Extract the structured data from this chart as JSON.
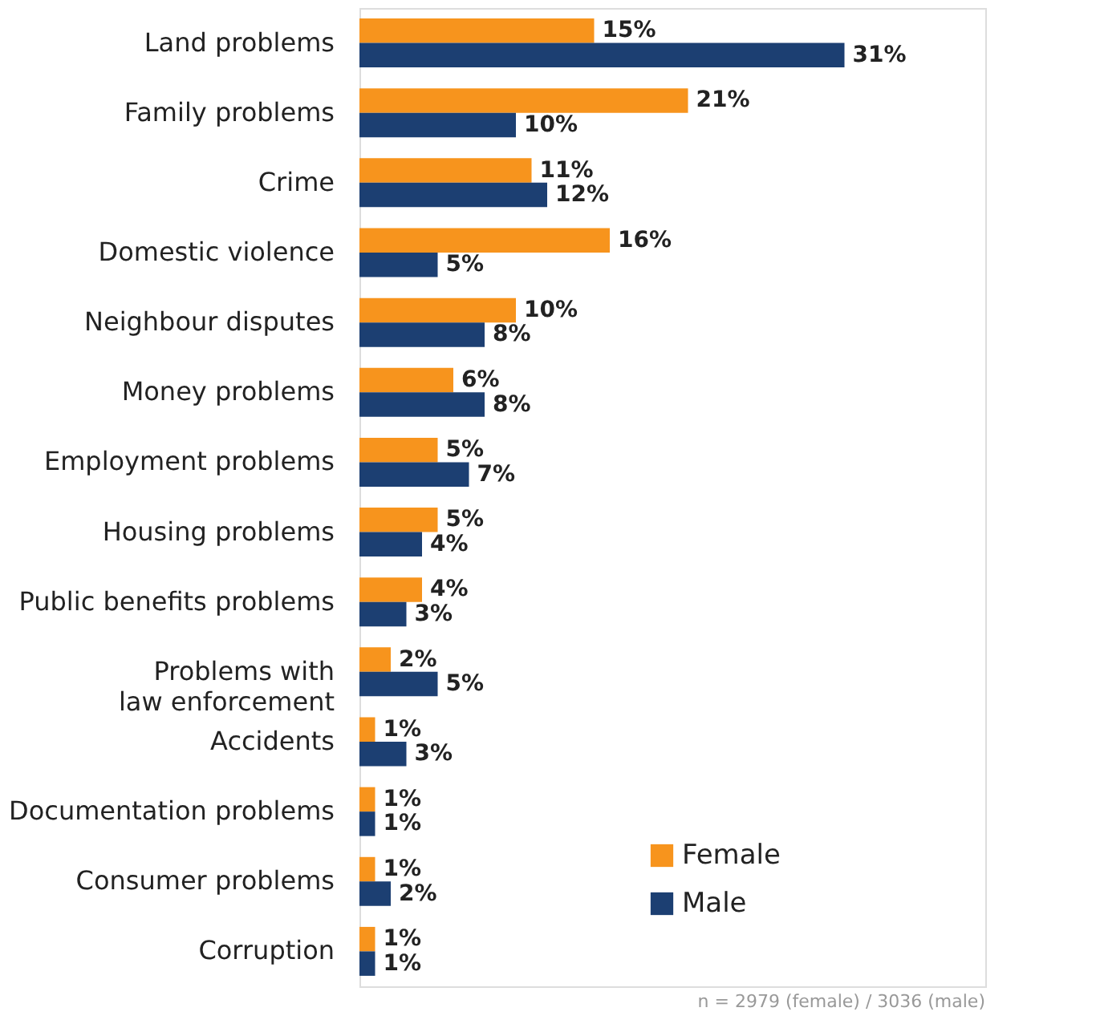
{
  "chart_data": {
    "type": "bar",
    "orientation": "horizontal",
    "categories": [
      "Land problems",
      "Family problems",
      "Crime",
      "Domestic violence",
      "Neighbour disputes",
      "Money problems",
      "Employment problems",
      "Housing problems",
      "Public benefits problems",
      "Problems with\nlaw enforcement",
      "Accidents",
      "Documentation problems",
      "Consumer problems",
      "Corruption"
    ],
    "series": [
      {
        "name": "Female",
        "color": "#f7941d",
        "values": [
          15,
          21,
          11,
          16,
          10,
          6,
          5,
          5,
          4,
          2,
          1,
          1,
          1,
          1
        ],
        "value_labels": [
          "15%",
          "21%",
          "11%",
          "16%",
          "10%",
          "6%",
          "5%",
          "5%",
          "4%",
          "2%",
          "1%",
          "1%",
          "1%",
          "1%"
        ]
      },
      {
        "name": "Male",
        "color": "#1c3f72",
        "values": [
          31,
          10,
          12,
          5,
          8,
          8,
          7,
          4,
          3,
          5,
          3,
          1,
          2,
          1
        ],
        "value_labels": [
          "31%",
          "10%",
          "12%",
          "5%",
          "8%",
          "8%",
          "7%",
          "4%",
          "3%",
          "5%",
          "3%",
          "1%",
          "2%",
          "1%"
        ]
      }
    ],
    "xlim": [
      0,
      40
    ],
    "tick_labels": "y",
    "legend": "bottom right",
    "annotations": [
      "n = 2979 (female) / 3036 (male)"
    ]
  }
}
